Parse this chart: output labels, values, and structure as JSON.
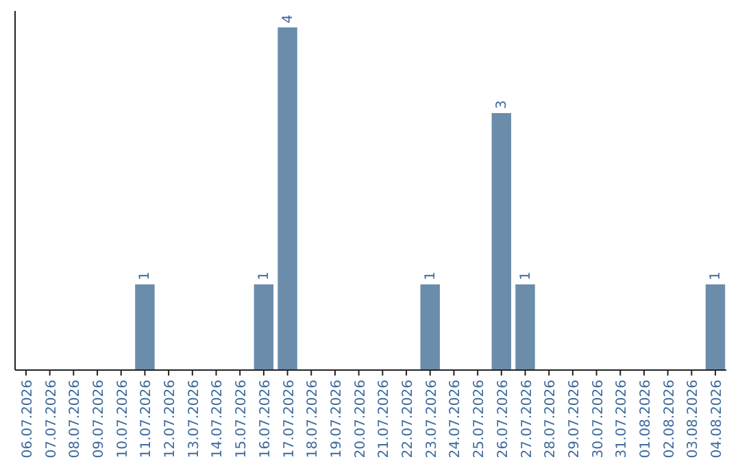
{
  "chart_data": {
    "type": "bar",
    "categories": [
      "06.07.2026",
      "07.07.2026",
      "08.07.2026",
      "09.07.2026",
      "10.07.2026",
      "11.07.2026",
      "12.07.2026",
      "13.07.2026",
      "14.07.2026",
      "15.07.2026",
      "16.07.2026",
      "17.07.2026",
      "18.07.2026",
      "19.07.2026",
      "20.07.2026",
      "21.07.2026",
      "22.07.2026",
      "23.07.2026",
      "24.07.2026",
      "25.07.2026",
      "26.07.2026",
      "27.07.2026",
      "28.07.2026",
      "29.07.2026",
      "30.07.2026",
      "31.07.2026",
      "01.08.2026",
      "02.08.2026",
      "03.08.2026",
      "04.08.2026"
    ],
    "values": [
      0,
      0,
      0,
      0,
      0,
      1,
      0,
      0,
      0,
      0,
      1,
      4,
      0,
      0,
      0,
      0,
      0,
      1,
      0,
      0,
      3,
      1,
      0,
      0,
      0,
      0,
      0,
      0,
      0,
      1
    ],
    "color": "#6b8dab",
    "value_labels": [
      null,
      null,
      null,
      null,
      null,
      "1",
      null,
      null,
      null,
      null,
      "1",
      "4",
      null,
      null,
      null,
      null,
      null,
      "1",
      null,
      null,
      "3",
      "1",
      null,
      null,
      null,
      null,
      null,
      null,
      null,
      "1"
    ]
  }
}
